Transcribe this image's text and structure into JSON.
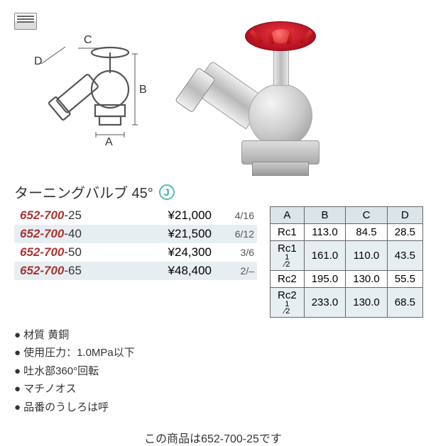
{
  "title": "ターニングバルブ 45°",
  "diagram": {
    "labels": {
      "A": "A",
      "B": "B",
      "C": "C",
      "D": "D"
    },
    "stroke": "#555555"
  },
  "products": [
    {
      "prefix": "652-700",
      "suffix": "-25",
      "price": "¥21,000",
      "pack": "4/16",
      "shaded": false
    },
    {
      "prefix": "652-700",
      "suffix": "-40",
      "price": "¥21,500",
      "pack": "6/12",
      "shaded": true
    },
    {
      "prefix": "652-700",
      "suffix": "-50",
      "price": "¥24,300",
      "pack": "3/6",
      "shaded": false
    },
    {
      "prefix": "652-700",
      "suffix": "-65",
      "price": "¥48,400",
      "pack": "2/–",
      "shaded": true
    }
  ],
  "dim_table": {
    "headers": [
      "A",
      "B",
      "C",
      "D"
    ],
    "rows": [
      {
        "cells": [
          "Rc1",
          "113.0",
          "84.5",
          "28.5"
        ],
        "shaded": false
      },
      {
        "cells": [
          "Rc1½",
          "161.0",
          "110.0",
          "43.5"
        ],
        "shaded": true
      },
      {
        "cells": [
          "Rc2",
          "195.0",
          "130.0",
          "55.5"
        ],
        "shaded": false
      },
      {
        "cells": [
          "Rc2½",
          "233.0",
          "130.0",
          "68.5"
        ],
        "shaded": true
      }
    ]
  },
  "notes": [
    "材質 黄銅",
    "使用圧力：1.0MPa以下",
    "吐水部360°回転",
    "マチノオス",
    "品番のうしろは呼"
  ],
  "footer_note": "この商品は652-700-25です",
  "j_badge": "J",
  "colors": {
    "shade_bg": "#e7eef2",
    "pn_prefix": "#aa3333",
    "handwheel": "#cc1828"
  }
}
